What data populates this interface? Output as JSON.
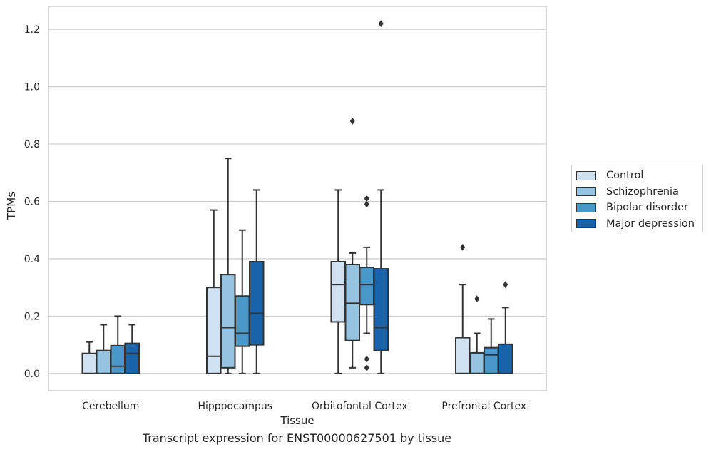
{
  "caption": "Transcript expression for ENST00000627501 by tissue",
  "chart_data": {
    "type": "box",
    "xlabel": "Tissue",
    "ylabel": "TPMs",
    "ylim": [
      -0.06,
      1.28
    ],
    "yticks": [
      0.0,
      0.2,
      0.4,
      0.6,
      0.8,
      1.0,
      1.2
    ],
    "ytick_labels": [
      "0.0",
      "0.2",
      "0.4",
      "0.6",
      "0.8",
      "1.0",
      "1.2"
    ],
    "grid": "horizontal",
    "legend_position": "right",
    "categories": [
      "Cerebellum",
      "Hipppocampus",
      "Orbitofontal Cortex",
      "Prefrontal Cortex"
    ],
    "series": [
      {
        "name": "Control",
        "color": "#d0e1f2",
        "boxes": [
          {
            "min": 0.0,
            "q1": 0.0,
            "median": 0.0,
            "q3": 0.07,
            "max": 0.11,
            "outliers": []
          },
          {
            "min": 0.0,
            "q1": 0.0,
            "median": 0.06,
            "q3": 0.3,
            "max": 0.57,
            "outliers": []
          },
          {
            "min": 0.0,
            "q1": 0.18,
            "median": 0.31,
            "q3": 0.39,
            "max": 0.64,
            "outliers": []
          },
          {
            "min": 0.0,
            "q1": 0.0,
            "median": 0.0,
            "q3": 0.125,
            "max": 0.31,
            "outliers": [
              0.44
            ]
          }
        ]
      },
      {
        "name": "Schizophrenia",
        "color": "#94c4df",
        "boxes": [
          {
            "min": 0.0,
            "q1": 0.0,
            "median": 0.0,
            "q3": 0.08,
            "max": 0.17,
            "outliers": []
          },
          {
            "min": 0.0,
            "q1": 0.02,
            "median": 0.16,
            "q3": 0.345,
            "max": 0.75,
            "outliers": []
          },
          {
            "min": 0.02,
            "q1": 0.115,
            "median": 0.245,
            "q3": 0.38,
            "max": 0.42,
            "outliers": [
              0.88
            ]
          },
          {
            "min": 0.0,
            "q1": 0.0,
            "median": 0.0,
            "q3": 0.072,
            "max": 0.14,
            "outliers": [
              0.26
            ]
          }
        ]
      },
      {
        "name": "Bipolar disorder",
        "color": "#4a98c9",
        "boxes": [
          {
            "min": 0.0,
            "q1": 0.0,
            "median": 0.025,
            "q3": 0.097,
            "max": 0.2,
            "outliers": []
          },
          {
            "min": 0.0,
            "q1": 0.095,
            "median": 0.14,
            "q3": 0.27,
            "max": 0.5,
            "outliers": []
          },
          {
            "min": 0.14,
            "q1": 0.24,
            "median": 0.31,
            "q3": 0.37,
            "max": 0.44,
            "outliers": [
              0.05,
              0.02,
              0.59,
              0.61
            ]
          },
          {
            "min": 0.0,
            "q1": 0.0,
            "median": 0.065,
            "q3": 0.09,
            "max": 0.19,
            "outliers": []
          }
        ]
      },
      {
        "name": "Major depression",
        "color": "#1764ab",
        "boxes": [
          {
            "min": 0.0,
            "q1": 0.0,
            "median": 0.07,
            "q3": 0.105,
            "max": 0.17,
            "outliers": []
          },
          {
            "min": 0.0,
            "q1": 0.1,
            "median": 0.21,
            "q3": 0.39,
            "max": 0.64,
            "outliers": []
          },
          {
            "min": 0.0,
            "q1": 0.08,
            "median": 0.16,
            "q3": 0.365,
            "max": 0.64,
            "outliers": [
              1.22
            ]
          },
          {
            "min": 0.0,
            "q1": 0.0,
            "median": 0.0,
            "q3": 0.102,
            "max": 0.23,
            "outliers": [
              0.31
            ]
          }
        ]
      }
    ]
  }
}
